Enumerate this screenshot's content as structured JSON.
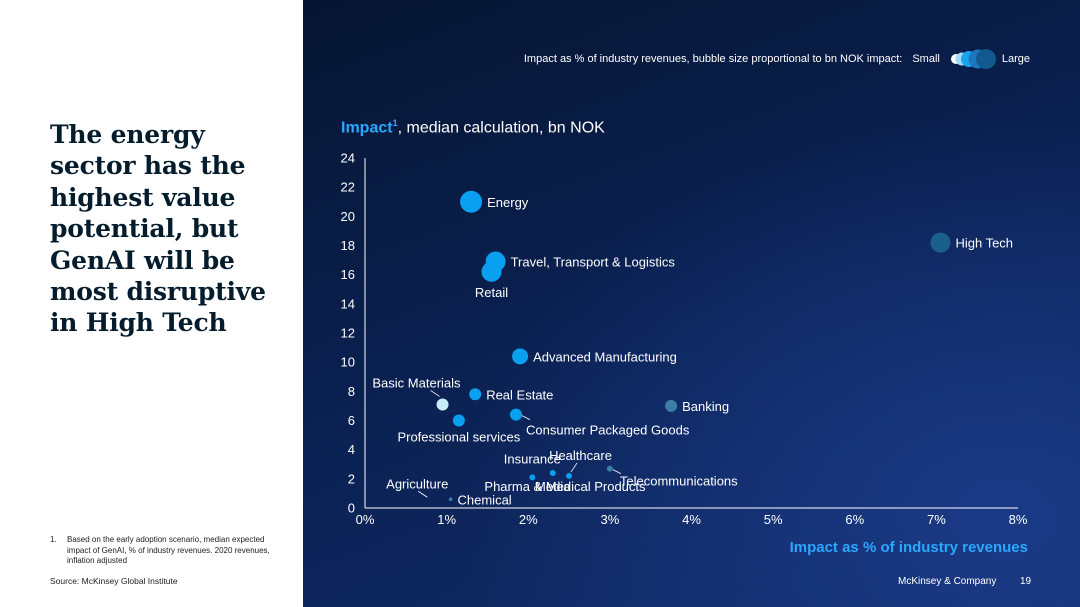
{
  "headline": "The energy sector has the highest value potential, but GenAI will be most disruptive in High Tech",
  "footnote": {
    "number": "1.",
    "text": "Based on the early adoption scenario, median expected impact of GenAI, % of industry revenues. 2020 revenues, inflation adjusted"
  },
  "source": "Source: McKinsey Global Institute",
  "legend": {
    "caption": "Impact as % of industry revenues, bubble size proportional to bn NOK impact:",
    "small_label": "Small",
    "large_label": "Large"
  },
  "footer": {
    "brand": "McKinsey & Company",
    "page_number": "19"
  },
  "colors": {
    "bright": "#0aa0f0",
    "mid": "#2b86c6",
    "steel": "#3c7fa6",
    "dark": "#1b5f8c",
    "pale": "#c7eef7",
    "accent": "#2aa8ff"
  },
  "chart_data": {
    "type": "scatter",
    "title_accent": "Impact",
    "title_sup": "1",
    "title_rest": ", median calculation, bn NOK",
    "xlabel": "Impact as % of industry revenues",
    "ylabel": "Impact, median calculation, bn NOK",
    "xlim": [
      0,
      8
    ],
    "ylim": [
      0,
      24
    ],
    "xticks": [
      "0%",
      "1%",
      "2%",
      "3%",
      "4%",
      "5%",
      "6%",
      "7%",
      "8%"
    ],
    "yticks": [
      "0",
      "2",
      "4",
      "6",
      "8",
      "10",
      "12",
      "14",
      "16",
      "18",
      "20",
      "22",
      "24"
    ],
    "points": [
      {
        "name": "Energy",
        "x": 1.3,
        "y": 21.0,
        "size": "xlarge",
        "color": "bright",
        "label_pos": "right"
      },
      {
        "name": "High Tech",
        "x": 7.05,
        "y": 18.2,
        "size": "large",
        "color": "dark",
        "label_pos": "right"
      },
      {
        "name": "Travel, Transport & Logistics",
        "x": 1.6,
        "y": 16.9,
        "size": "large",
        "color": "bright",
        "label_pos": "right"
      },
      {
        "name": "Retail",
        "x": 1.55,
        "y": 16.2,
        "size": "large",
        "color": "bright",
        "label_pos": "below"
      },
      {
        "name": "Advanced Manufacturing",
        "x": 1.9,
        "y": 10.4,
        "size": "medium",
        "color": "bright",
        "label_pos": "right"
      },
      {
        "name": "Real Estate",
        "x": 1.35,
        "y": 7.8,
        "size": "small",
        "color": "bright",
        "label_pos": "right"
      },
      {
        "name": "Basic Materials",
        "x": 0.95,
        "y": 7.1,
        "size": "small",
        "color": "pale",
        "label_pos": "above-left"
      },
      {
        "name": "Banking",
        "x": 3.75,
        "y": 7.0,
        "size": "small",
        "color": "steel",
        "label_pos": "right"
      },
      {
        "name": "Professional services",
        "x": 1.15,
        "y": 6.0,
        "size": "small",
        "color": "bright",
        "label_pos": "below"
      },
      {
        "name": "Consumer Packaged Goods",
        "x": 1.85,
        "y": 6.4,
        "size": "small",
        "color": "bright",
        "label_pos": "below-right"
      },
      {
        "name": "Insurance",
        "x": 2.05,
        "y": 2.1,
        "size": "tiny",
        "color": "bright",
        "label_pos": "above"
      },
      {
        "name": "Media",
        "x": 2.3,
        "y": 2.4,
        "size": "tiny",
        "color": "bright",
        "label_pos": "below"
      },
      {
        "name": "Healthcare",
        "x": 2.5,
        "y": 2.2,
        "size": "tiny",
        "color": "bright",
        "label_pos": "above-right"
      },
      {
        "name": "Telecommunications",
        "x": 3.0,
        "y": 2.7,
        "size": "tiny",
        "color": "steel",
        "label_pos": "below-right"
      },
      {
        "name": "Pharma & Medical Products",
        "x": 2.45,
        "y": 2.2,
        "size": "none",
        "color": "bright",
        "label_pos": "below"
      },
      {
        "name": "Agriculture",
        "x": 0.8,
        "y": 0.6,
        "size": "none",
        "color": "bright",
        "label_pos": "above-left"
      },
      {
        "name": "Chemical",
        "x": 1.05,
        "y": 0.6,
        "size": "dot",
        "color": "steel",
        "label_pos": "right"
      }
    ]
  }
}
